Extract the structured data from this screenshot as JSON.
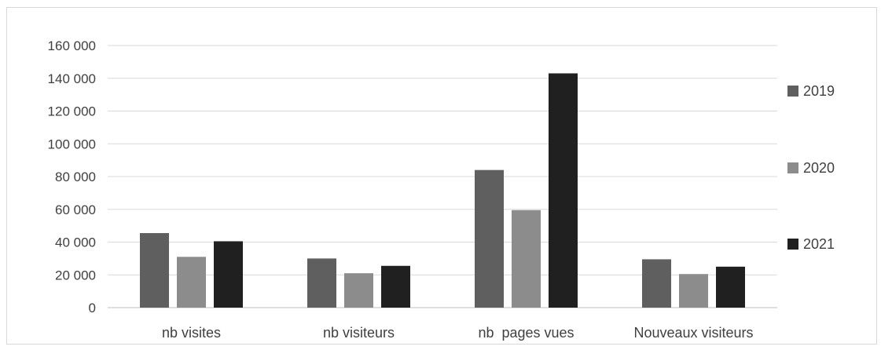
{
  "chart_data": {
    "type": "bar",
    "categories": [
      "nb visites",
      "nb visiteurs",
      "nb  pages vues",
      "Nouveaux visiteurs"
    ],
    "series": [
      {
        "name": "2019",
        "values": [
          45500,
          30000,
          84000,
          29500
        ],
        "color": "#5f5f5f"
      },
      {
        "name": "2020",
        "values": [
          31000,
          21000,
          59500,
          20500
        ],
        "color": "#8c8c8c"
      },
      {
        "name": "2021",
        "values": [
          40500,
          25500,
          143000,
          25000
        ],
        "color": "#202020"
      }
    ],
    "yticks": [
      "0",
      "20 000",
      "40 000",
      "60 000",
      "80 000",
      "100 000",
      "120 000",
      "140 000",
      "160 000"
    ],
    "ylim": [
      0,
      160000
    ],
    "grid": true,
    "legend_position": "right"
  }
}
